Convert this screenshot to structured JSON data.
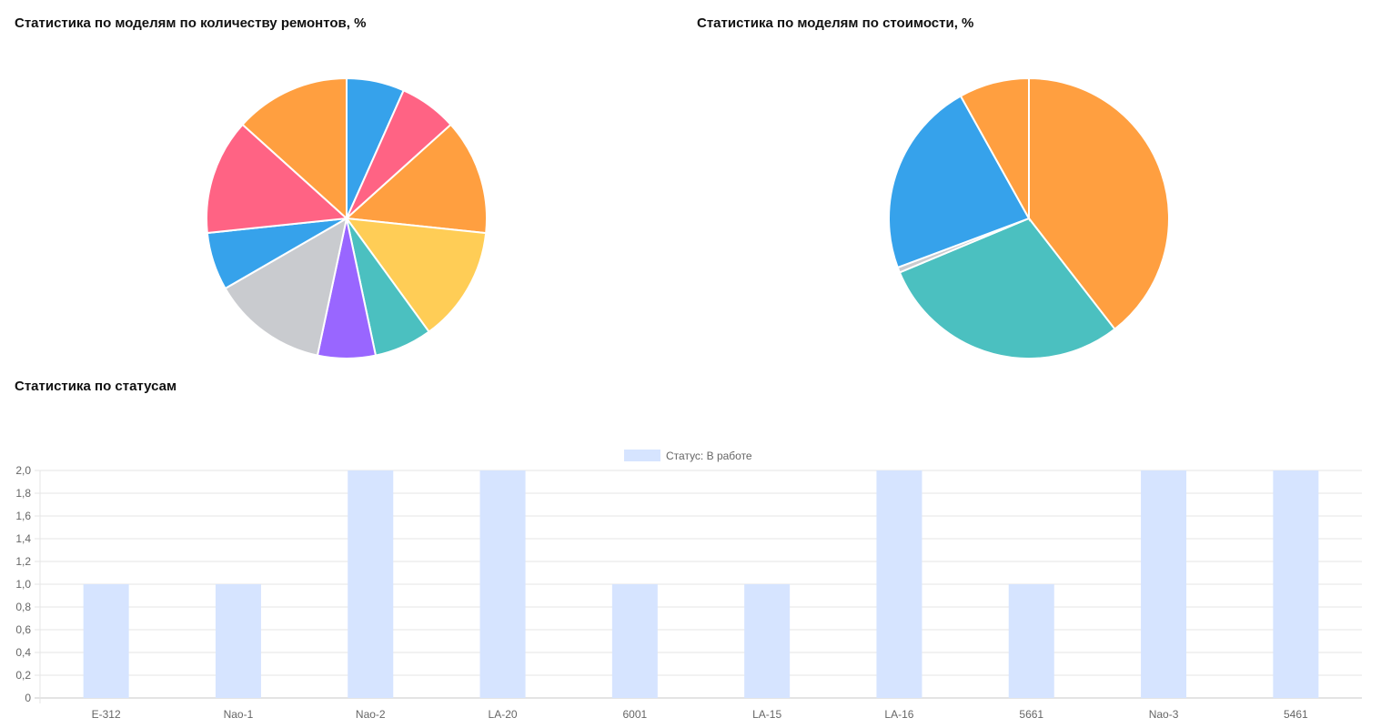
{
  "titles": {
    "pie_repairs": "Статистика по моделям по количеству ремонтов, %",
    "pie_cost": "Статистика по моделям по стоимости, %",
    "bar_status": "Статистика по статусам"
  },
  "chart_data": [
    {
      "type": "pie",
      "title": "Статистика по моделям по количеству ремонтов, %",
      "values": [
        6.67,
        6.67,
        13.33,
        13.33,
        6.67,
        6.67,
        13.33,
        6.67,
        13.33,
        13.33
      ],
      "colors": [
        "#36a2eb",
        "#ff6384",
        "#ff9f40",
        "#ffcd56",
        "#4bc0c0",
        "#9966ff",
        "#c9cbcf",
        "#36a2eb",
        "#ff6384",
        "#ff9f40"
      ]
    },
    {
      "type": "pie",
      "title": "Статистика по моделям по стоимости, %",
      "values": [
        39.5,
        29.2,
        0.6,
        22.6,
        8.1
      ],
      "colors": [
        "#ff9f40",
        "#4bc0c0",
        "#c9cbcf",
        "#36a2eb",
        "#ff9f40"
      ]
    },
    {
      "type": "bar",
      "title": "Статистика по статусам",
      "categories": [
        "E-312",
        "Nao-1",
        "Nao-2",
        "LA-20",
        "6001",
        "LA-15",
        "LA-16",
        "5661",
        "Nao-3",
        "5461"
      ],
      "series": [
        {
          "name": "Статус: В работе",
          "values": [
            1,
            1,
            2,
            2,
            1,
            1,
            2,
            1,
            2,
            2
          ],
          "color": "#d6e4ff"
        }
      ],
      "ylim": [
        0,
        2
      ],
      "yticks": [
        "0",
        "0,2",
        "0,4",
        "0,6",
        "0,8",
        "1,0",
        "1,2",
        "1,4",
        "1,6",
        "1,8",
        "2,0"
      ],
      "legend": "top-center",
      "grid": true
    }
  ]
}
